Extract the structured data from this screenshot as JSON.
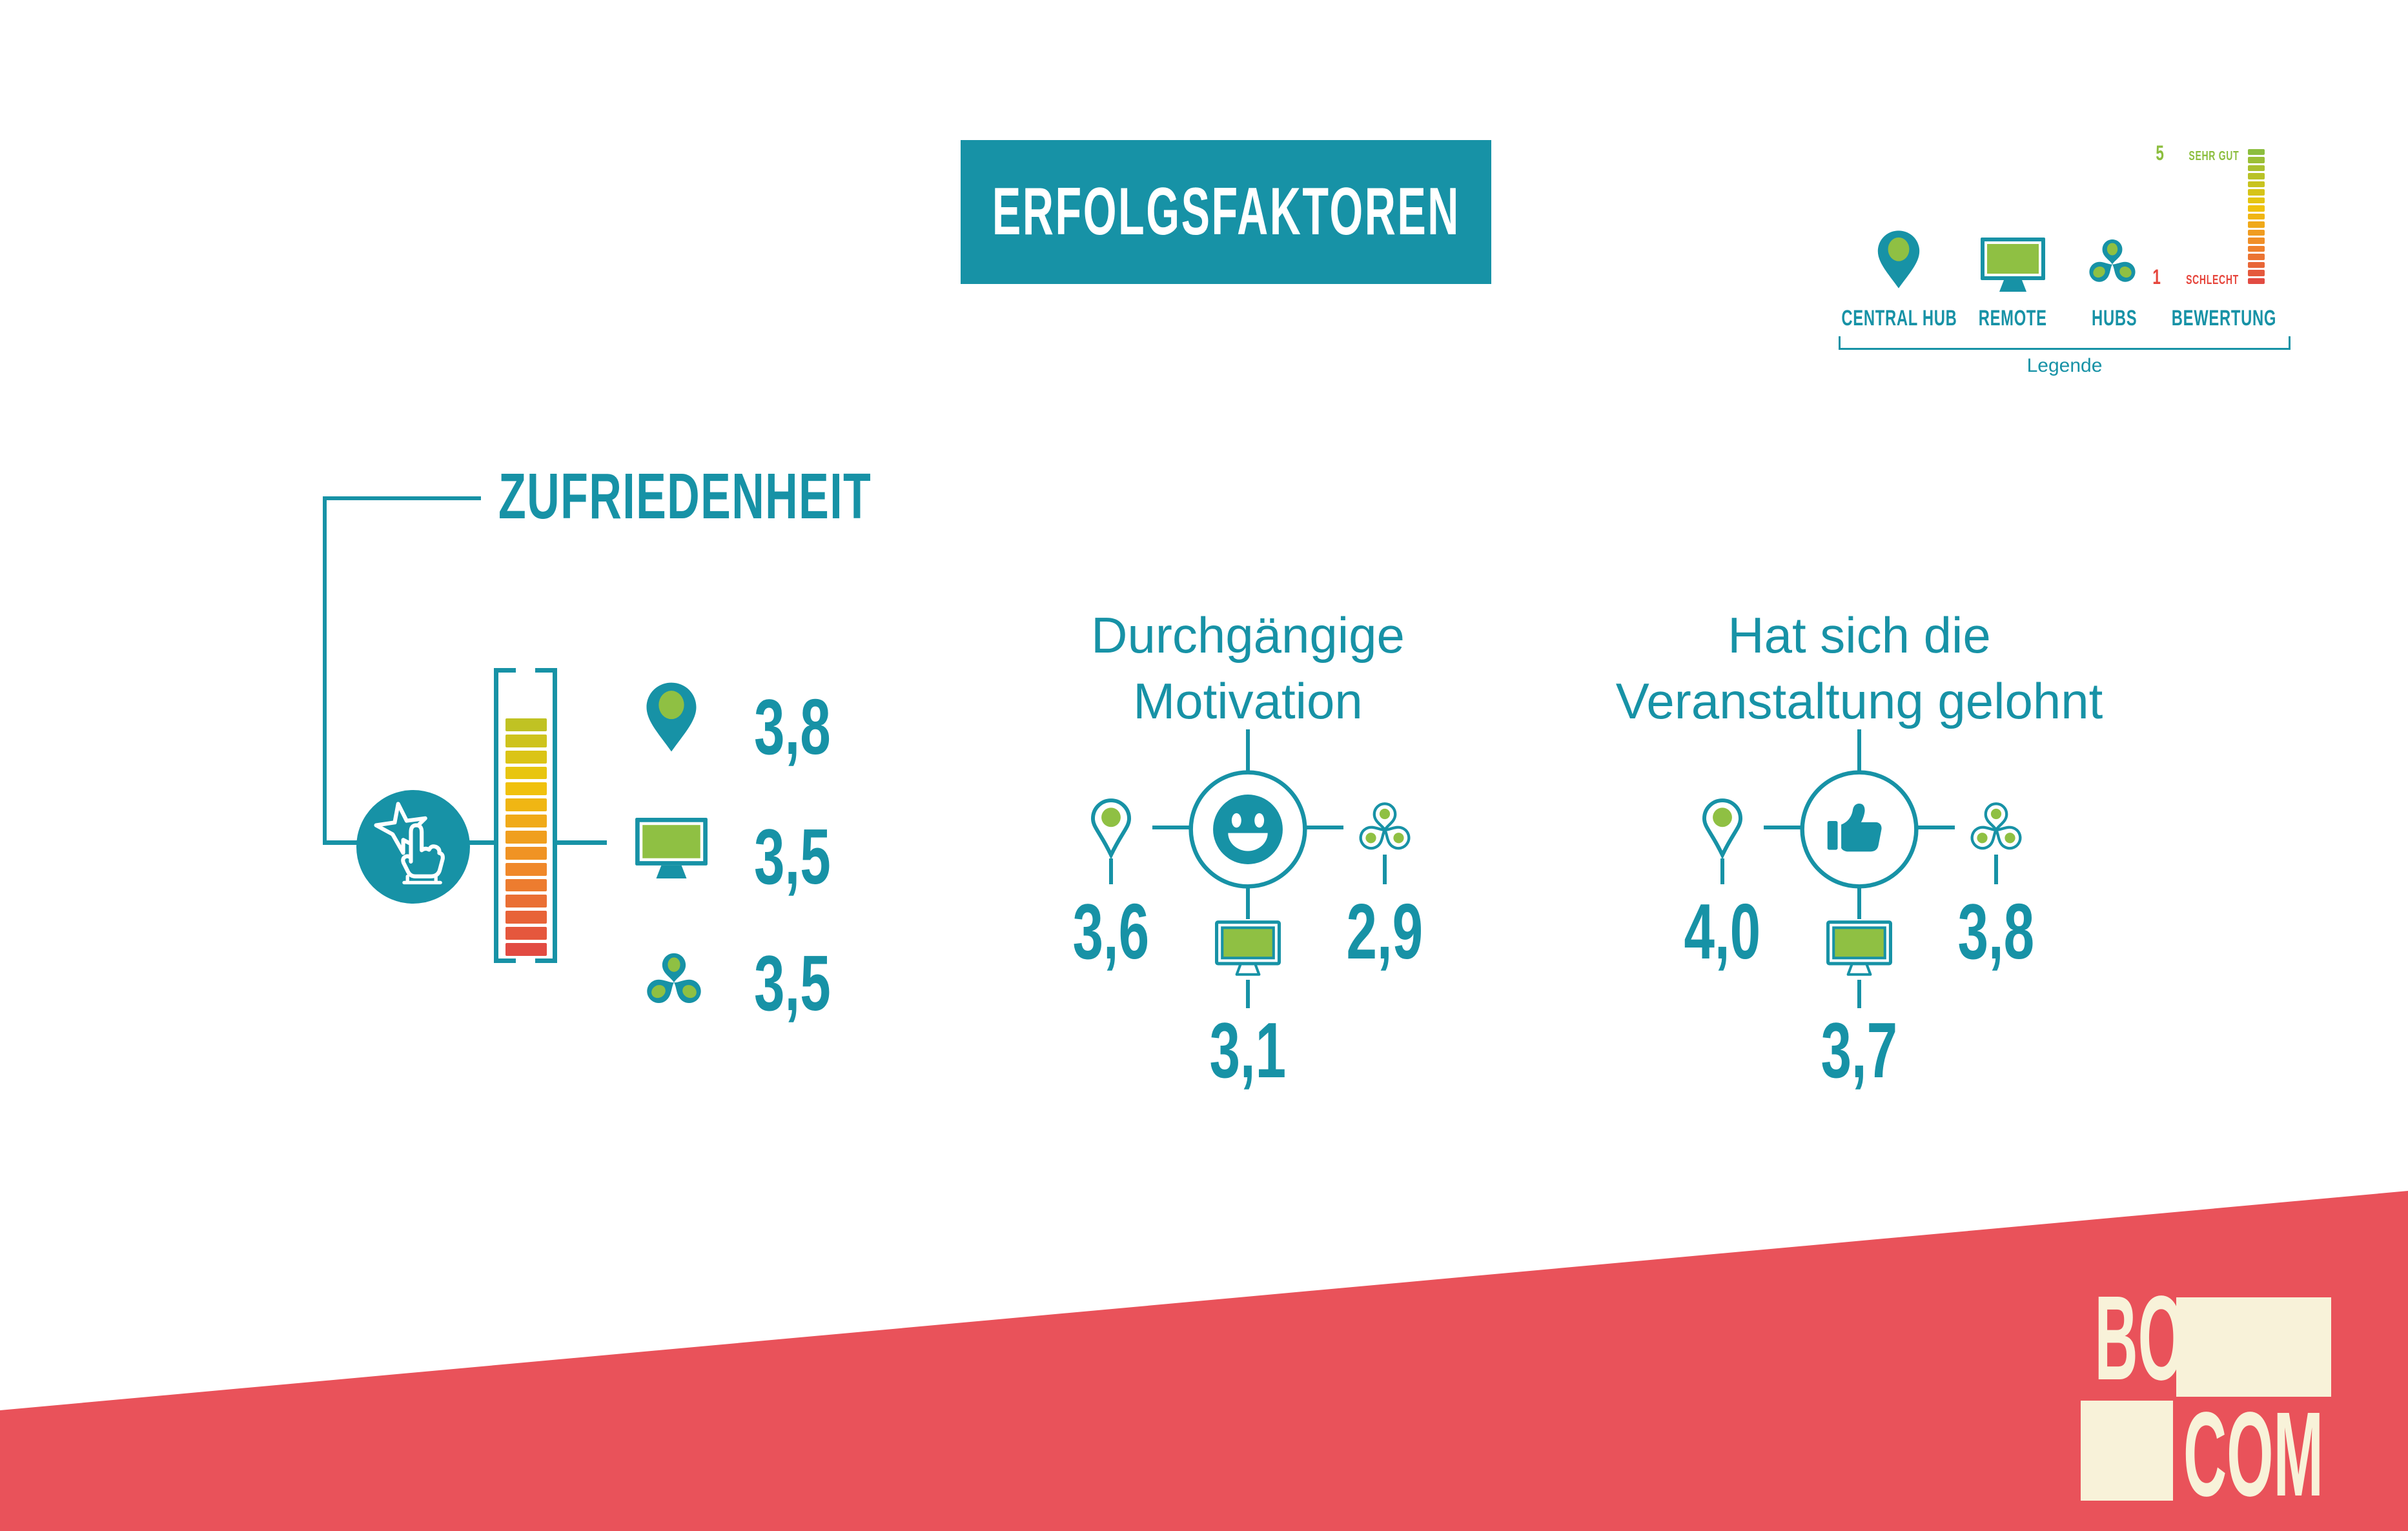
{
  "banner": {
    "label": "ERFOLGSFAKTOREN"
  },
  "legend": {
    "caption": "Legende",
    "items": [
      {
        "label": "CENTRAL HUB",
        "icon": "central-hub-pin"
      },
      {
        "label": "REMOTE",
        "icon": "remote-monitor"
      },
      {
        "label": "HUBS",
        "icon": "hubs-cluster"
      },
      {
        "label": "BEWERTUNG",
        "icon": "rating-scale"
      }
    ],
    "scale": {
      "segments": 17,
      "t_start": 0,
      "t_end": 1,
      "top_number": "5",
      "top_label": "SEHR GUT",
      "bottom_number": "1",
      "bottom_label": "SCHLECHT"
    }
  },
  "sections": {
    "zufriedenheit": {
      "title": "ZUFRIEDENHEIT",
      "meter": {
        "segments": 15,
        "t_start": 0.22,
        "t_end": 1
      },
      "ratings": [
        {
          "location": "Central Hub",
          "icon": "central-hub-pin",
          "value": "3,8"
        },
        {
          "location": "Remote",
          "icon": "remote-monitor",
          "value": "3,5"
        },
        {
          "location": "Hubs",
          "icon": "hubs-cluster",
          "value": "3,5"
        }
      ]
    },
    "motivation": {
      "title_line1": "Durchgängige",
      "title_line2": "Motivation",
      "center_icon": "smiley",
      "ratings": [
        {
          "location": "Central Hub",
          "icon": "central-hub-pin",
          "value": "3,6"
        },
        {
          "location": "Hubs",
          "icon": "hubs-cluster",
          "value": "2,9"
        },
        {
          "location": "Remote",
          "icon": "remote-monitor",
          "value": "3,1"
        }
      ]
    },
    "gelohnt": {
      "title_line1": "Hat sich die",
      "title_line2": "Veranstaltung gelohnt",
      "center_icon": "thumbs-up",
      "ratings": [
        {
          "location": "Central Hub",
          "icon": "central-hub-pin",
          "value": "4,0"
        },
        {
          "location": "Hubs",
          "icon": "hubs-cluster",
          "value": "3,8"
        },
        {
          "location": "Remote",
          "icon": "remote-monitor",
          "value": "3,7"
        }
      ]
    }
  },
  "logo": {
    "line1": "BO",
    "line2": "COM"
  },
  "colors": {
    "teal": "#1792A6",
    "green": "#8FC043",
    "red_band": "#E9525A",
    "red_text": "#E6463D",
    "cream": "#F8F2D9",
    "scale_green": "#8CBE3E",
    "gradient_stops": [
      {
        "t": 0,
        "c": "#8CBE3E"
      },
      {
        "t": 0.42,
        "c": "#F0C60B"
      },
      {
        "t": 0.72,
        "c": "#F0882A"
      },
      {
        "t": 1,
        "c": "#E24B42"
      }
    ]
  },
  "chart_data": {
    "type": "table",
    "title": "Erfolgsfaktoren",
    "categories": [
      "Central Hub",
      "Remote",
      "Hubs"
    ],
    "series": [
      {
        "name": "Zufriedenheit",
        "values": [
          3.8,
          3.5,
          3.5
        ]
      },
      {
        "name": "Durchgängige Motivation",
        "values": [
          3.6,
          3.1,
          2.9
        ]
      },
      {
        "name": "Hat sich die Veranstaltung gelohnt",
        "values": [
          4.0,
          3.7,
          3.8
        ]
      }
    ],
    "scale": {
      "min": 1,
      "max": 5,
      "min_label": "schlecht",
      "max_label": "sehr gut"
    },
    "legend_position": "top-right",
    "grid": false
  }
}
